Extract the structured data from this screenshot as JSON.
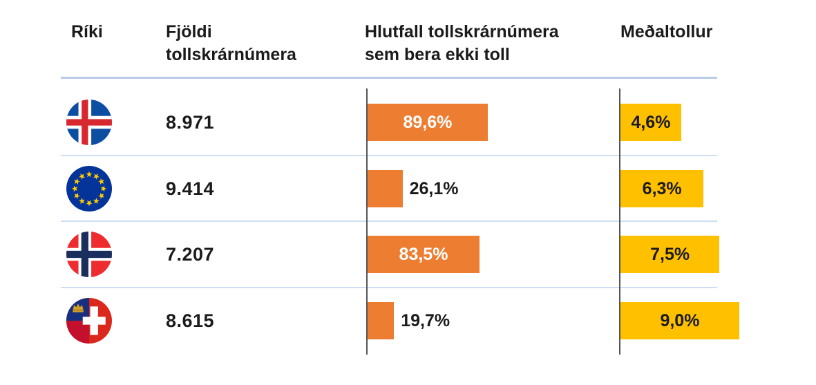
{
  "header": {
    "country": "Ríki",
    "count": "Fjöldi\ntollskrárnúmera",
    "share": "Hlutfall tollskrárnúmera\nsem bera ekki toll",
    "avg": "Meðaltollur"
  },
  "colors": {
    "share_bar": "#ED7D31",
    "avg_bar": "#FFC000",
    "axis_line": "#555555",
    "divider_line": "#b9cbe8",
    "text": "#1b1b1b",
    "share_label_inside": "#ffffff"
  },
  "chart_data": {
    "type": "bar",
    "title": "",
    "columns": [
      "Ríki",
      "Fjöldi tollskrárnúmera",
      "Hlutfall tollskrárnúmera sem bera ekki toll",
      "Meðaltollur"
    ],
    "categories": [
      "iceland",
      "european-union",
      "norway",
      "liechtenstein-switzerland"
    ],
    "series": [
      {
        "name": "Hlutfall tollskrárnúmera sem bera ekki toll",
        "unit": "%",
        "values": [
          89.6,
          26.1,
          83.5,
          19.7
        ],
        "color": "#ED7D31"
      },
      {
        "name": "Meðaltollur",
        "unit": "%",
        "values": [
          4.6,
          6.3,
          7.5,
          9.0
        ],
        "color": "#FFC000"
      }
    ],
    "rows": [
      {
        "flag_icon": "iceland-flag",
        "count": "8.971",
        "share_pct": 89.6,
        "share_label": "89,6%",
        "avg_pct": 4.6,
        "avg_label": "4,6%"
      },
      {
        "flag_icon": "eu-flag",
        "count": "9.414",
        "share_pct": 26.1,
        "share_label": "26,1%",
        "avg_pct": 6.3,
        "avg_label": "6,3%"
      },
      {
        "flag_icon": "norway-flag",
        "count": "7.207",
        "share_pct": 83.5,
        "share_label": "83,5%",
        "avg_pct": 7.5,
        "avg_label": "7,5%"
      },
      {
        "flag_icon": "liechtenstein-switzerland-flag",
        "count": "8.615",
        "share_pct": 19.7,
        "share_label": "19,7%",
        "avg_pct": 9.0,
        "avg_label": "9,0%"
      }
    ],
    "layout_hints": {
      "grid": "row dividers only",
      "legend": "none",
      "bars_grow_right_from_axis": true
    }
  }
}
